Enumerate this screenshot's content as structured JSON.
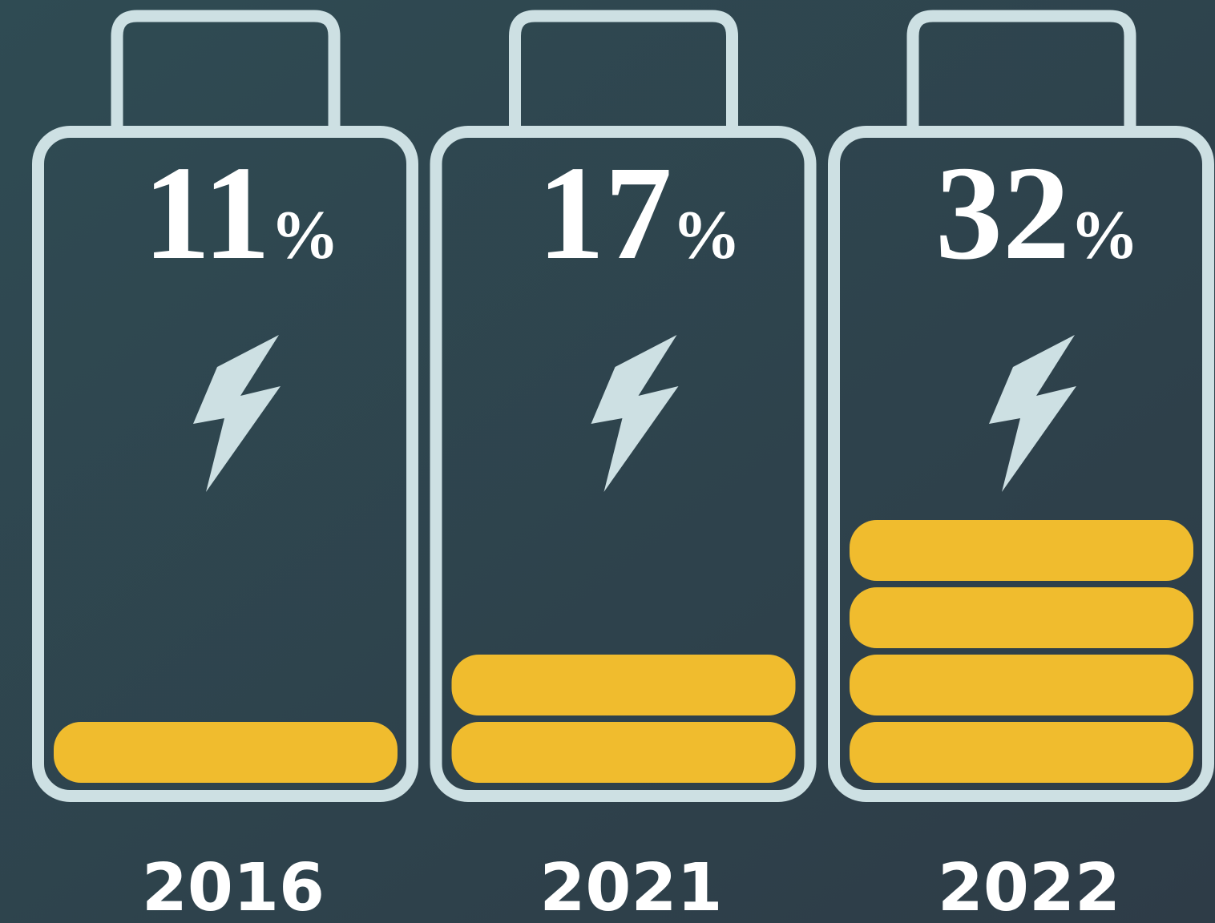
{
  "chart_data": {
    "type": "battery",
    "categories": [
      "2016",
      "2021",
      "2022"
    ],
    "values": [
      11,
      17,
      32
    ],
    "unit": "%",
    "segments": [
      1,
      2,
      4
    ],
    "color": "#f0bc2e"
  }
}
